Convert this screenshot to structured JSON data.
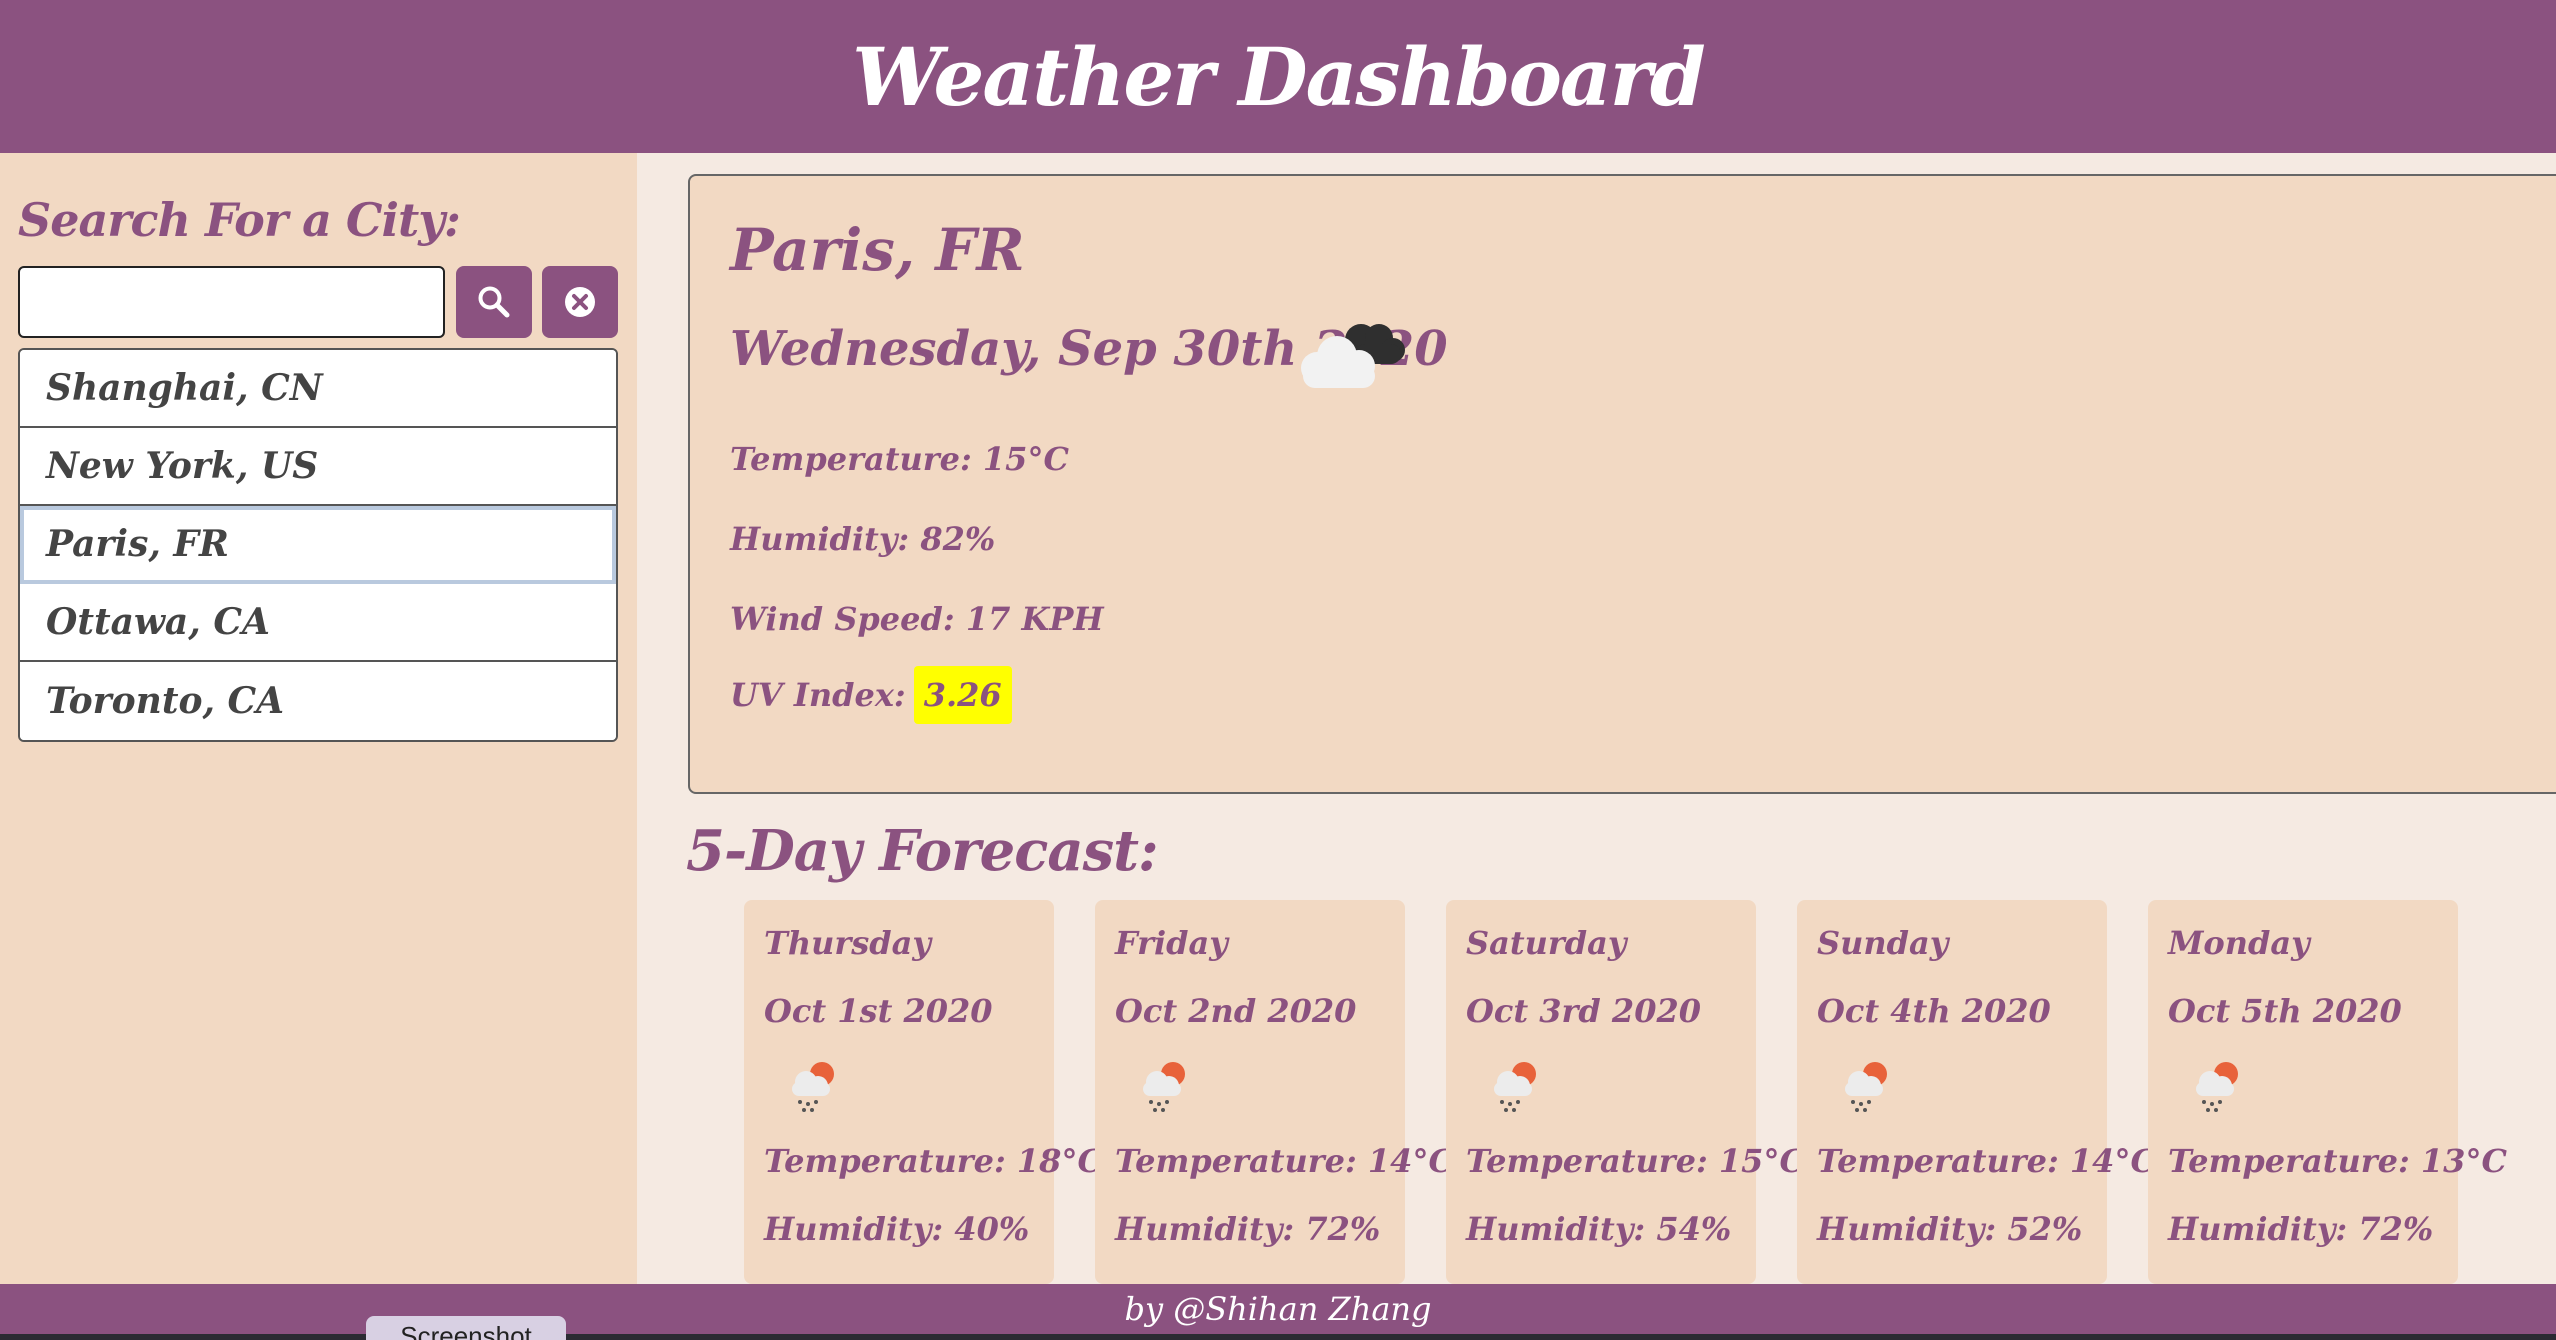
{
  "header": {
    "title": "Weather Dashboard"
  },
  "sidebar": {
    "search_label": "Search For a City:",
    "search_value": "",
    "cities": [
      "Shanghai, CN",
      "New York, US",
      "Paris, FR",
      "Ottawa, CA",
      "Toronto, CA"
    ],
    "active_city_index": 2
  },
  "current": {
    "city": "Paris, FR",
    "date": "Wednesday, Sep 30th 2020",
    "icon": "cloudy-icon",
    "temperature": "Temperature: 15°C",
    "humidity": "Humidity: 82%",
    "wind": "Wind Speed: 17 KPH",
    "uv_label": "UV Index:",
    "uv_value": "3.26"
  },
  "forecast": {
    "title": "5-Day Forecast:",
    "days": [
      {
        "day": "Thursday",
        "date": "Oct 1st 2020",
        "icon": "rain-sun-icon",
        "temperature": "Temperature: 18°C",
        "humidity": "Humidity: 40%"
      },
      {
        "day": "Friday",
        "date": "Oct 2nd 2020",
        "icon": "rain-sun-icon",
        "temperature": "Temperature: 14°C",
        "humidity": "Humidity: 72%"
      },
      {
        "day": "Saturday",
        "date": "Oct 3rd 2020",
        "icon": "rain-sun-icon",
        "temperature": "Temperature: 15°C",
        "humidity": "Humidity: 54%"
      },
      {
        "day": "Sunday",
        "date": "Oct 4th 2020",
        "icon": "rain-sun-icon",
        "temperature": "Temperature: 14°C",
        "humidity": "Humidity: 52%"
      },
      {
        "day": "Monday",
        "date": "Oct 5th 2020",
        "icon": "rain-sun-icon",
        "temperature": "Temperature: 13°C",
        "humidity": "Humidity: 72%"
      }
    ]
  },
  "footer": {
    "credit": "by @Shihan Zhang"
  },
  "overlay": {
    "screenshot_button": "Screenshot"
  },
  "colors": {
    "accent": "#8b5280",
    "panel": "#f2d9c3",
    "background": "#f5eae2",
    "uv_highlight": "#ffff00"
  }
}
